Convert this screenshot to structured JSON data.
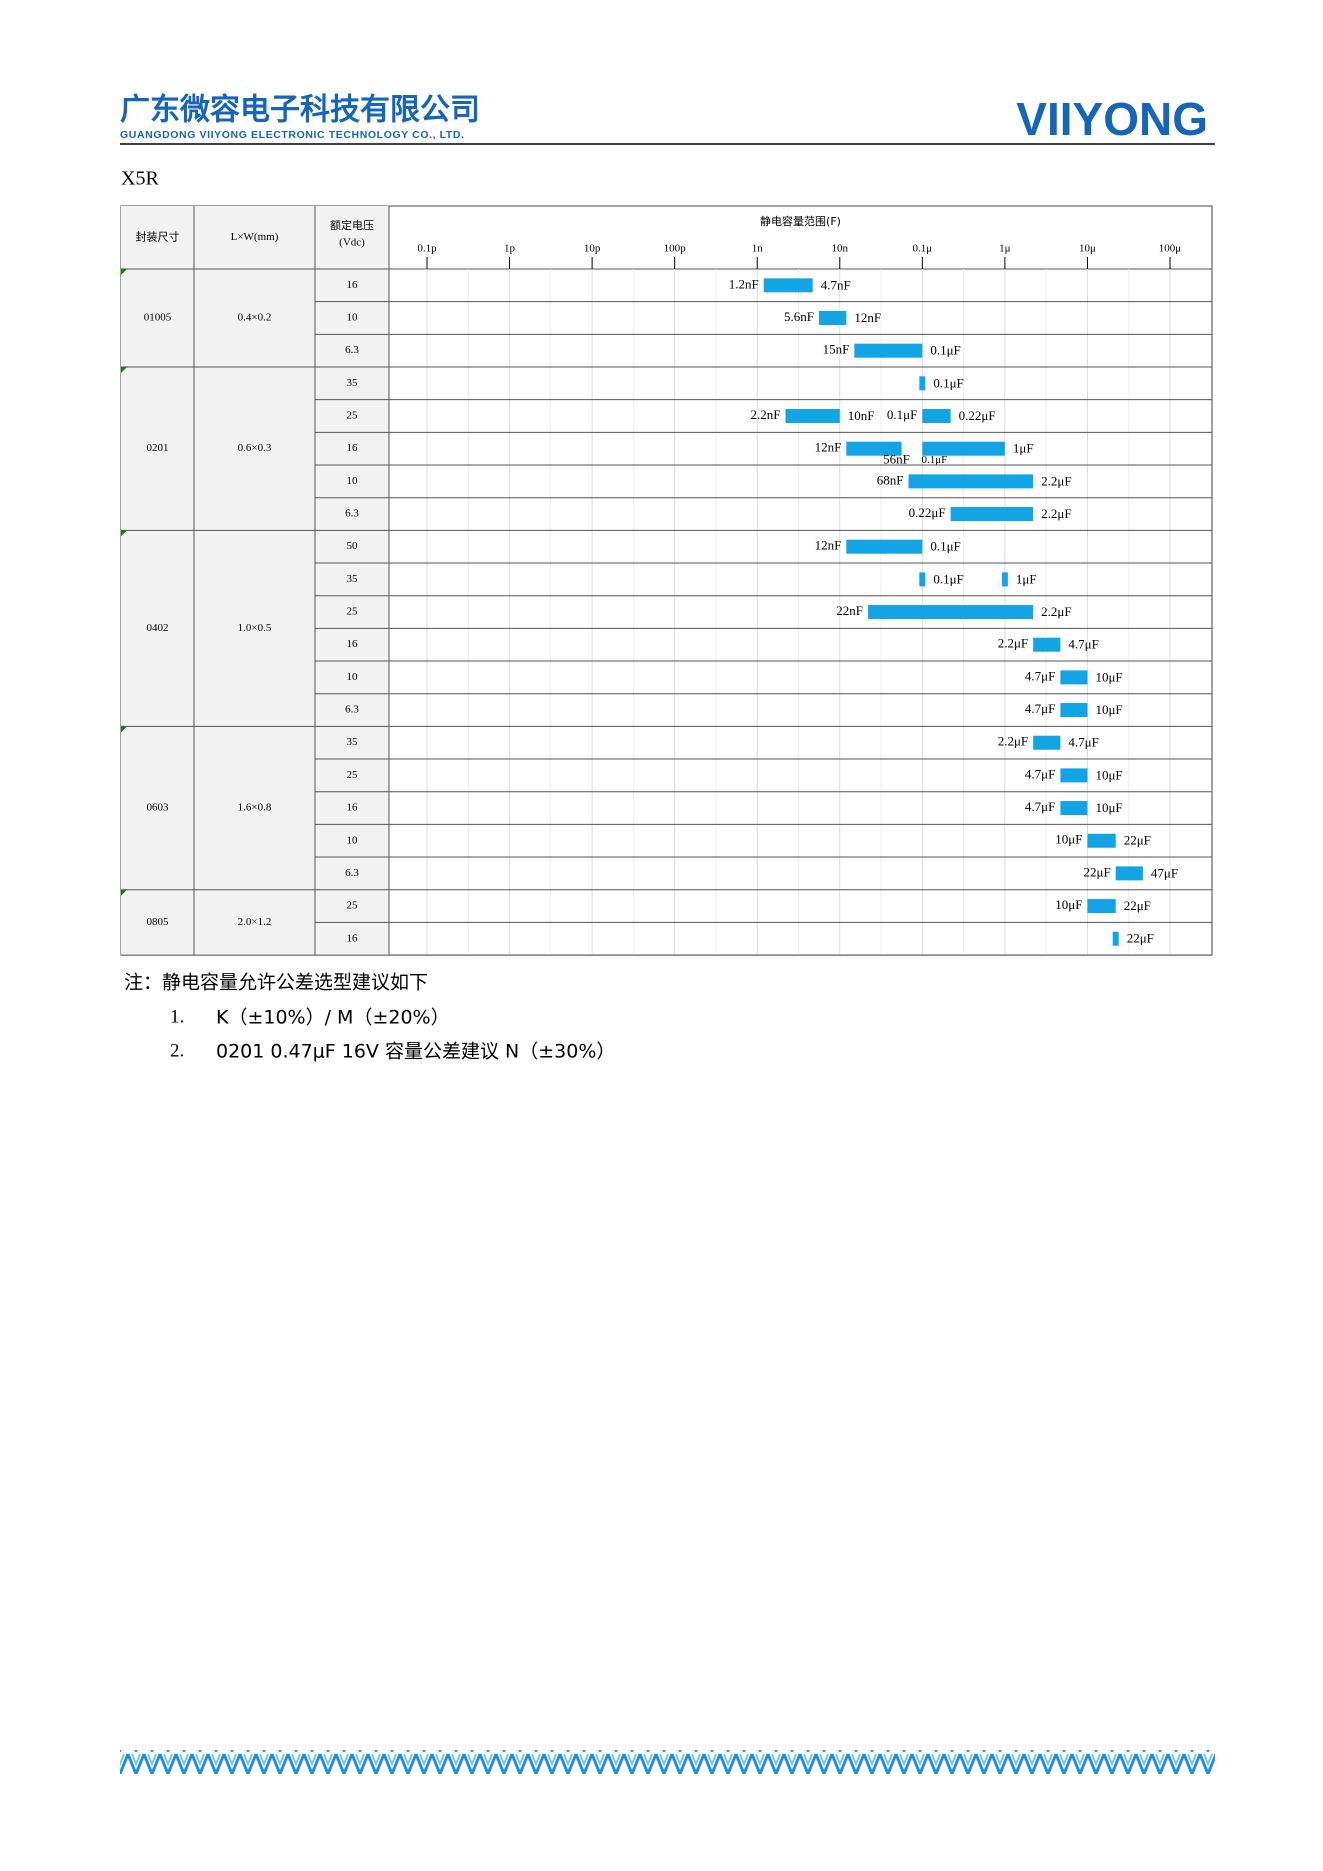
{
  "header": {
    "company_cn": "广东微容电子科技有限公司",
    "company_en": "GUANGDONG VIIYONG ELECTRONIC TECHNOLOGY CO., LTD.",
    "logo": "VIIYONG"
  },
  "section_title": "X5R",
  "table": {
    "col_size": "封装尺寸",
    "col_dims": "L×W(mm)",
    "col_voltage": [
      "额定电压",
      "(Vdc)"
    ],
    "col_range": "静电容量范围(F)",
    "ticks": [
      {
        "value": 1e-13,
        "label": "0.1p"
      },
      {
        "value": 1e-12,
        "label": "1p"
      },
      {
        "value": 1e-11,
        "label": "10p"
      },
      {
        "value": 1e-10,
        "label": "100p"
      },
      {
        "value": 1e-09,
        "label": "1n"
      },
      {
        "value": 1e-08,
        "label": "10n"
      },
      {
        "value": 1e-07,
        "label": "0.1μ"
      },
      {
        "value": 1e-06,
        "label": "1μ"
      },
      {
        "value": 1e-05,
        "label": "10μ"
      },
      {
        "value": 0.0001,
        "label": "100μ"
      }
    ],
    "log_scale": true,
    "bar_color": "#12a4e4",
    "groups": [
      {
        "size": "01005",
        "dims": "0.4×0.2",
        "rows": [
          {
            "voltage": "16",
            "ranges": [
              {
                "min": 1.2e-09,
                "max": 4.7e-09,
                "min_label": "1.2nF",
                "max_label": "4.7nF"
              }
            ]
          },
          {
            "voltage": "10",
            "ranges": [
              {
                "min": 5.6e-09,
                "max": 1.2e-08,
                "min_label": "5.6nF",
                "max_label": "12nF"
              }
            ]
          },
          {
            "voltage": "6.3",
            "ranges": [
              {
                "min": 1.5e-08,
                "max": 1e-07,
                "min_label": "15nF",
                "max_label": "0.1μF"
              }
            ]
          }
        ]
      },
      {
        "size": "0201",
        "dims": "0.6×0.3",
        "rows": [
          {
            "voltage": "35",
            "ranges": [
              {
                "min": 1e-07,
                "max": 1e-07,
                "max_label": "0.1μF"
              }
            ]
          },
          {
            "voltage": "25",
            "ranges": [
              {
                "min": 2.2e-09,
                "max": 1e-08,
                "min_label": "2.2nF",
                "max_label": "10nF"
              },
              {
                "min": 1e-07,
                "max": 2.2e-07,
                "min_label": "0.1μF",
                "max_label": "0.22μF"
              }
            ]
          },
          {
            "voltage": "16",
            "ranges": [
              {
                "min": 1.2e-08,
                "max": 5.6e-08,
                "min_label": "12nF",
                "max_label": "56nF"
              },
              {
                "min": 1e-07,
                "max": 1e-06,
                "min_label": "0.1μF",
                "max_label": "1μF"
              }
            ]
          },
          {
            "voltage": "10",
            "ranges": [
              {
                "min": 6.8e-08,
                "max": 2.2e-06,
                "min_label": "68nF",
                "max_label": "2.2μF"
              }
            ]
          },
          {
            "voltage": "6.3",
            "ranges": [
              {
                "min": 2.2e-07,
                "max": 2.2e-06,
                "min_label": "0.22μF",
                "max_label": "2.2μF"
              }
            ]
          }
        ]
      },
      {
        "size": "0402",
        "dims": "1.0×0.5",
        "rows": [
          {
            "voltage": "50",
            "ranges": [
              {
                "min": 1.2e-08,
                "max": 1e-07,
                "min_label": "12nF",
                "max_label": "0.1μF"
              }
            ]
          },
          {
            "voltage": "35",
            "ranges": [
              {
                "min": 1e-07,
                "max": 1e-07,
                "max_label": "0.1μF"
              },
              {
                "min": 1e-06,
                "max": 1e-06,
                "max_label": "1μF"
              }
            ]
          },
          {
            "voltage": "25",
            "ranges": [
              {
                "min": 2.2e-08,
                "max": 2.2e-06,
                "min_label": "22nF",
                "max_label": "2.2μF"
              }
            ]
          },
          {
            "voltage": "16",
            "ranges": [
              {
                "min": 2.2e-06,
                "max": 4.7e-06,
                "min_label": "2.2μF",
                "max_label": "4.7μF"
              }
            ]
          },
          {
            "voltage": "10",
            "ranges": [
              {
                "min": 4.7e-06,
                "max": 1e-05,
                "min_label": "4.7μF",
                "max_label": "10μF"
              }
            ]
          },
          {
            "voltage": "6.3",
            "ranges": [
              {
                "min": 4.7e-06,
                "max": 1e-05,
                "min_label": "4.7μF",
                "max_label": "10μF"
              }
            ]
          }
        ]
      },
      {
        "size": "0603",
        "dims": "1.6×0.8",
        "rows": [
          {
            "voltage": "35",
            "ranges": [
              {
                "min": 2.2e-06,
                "max": 4.7e-06,
                "min_label": "2.2μF",
                "max_label": "4.7μF"
              }
            ]
          },
          {
            "voltage": "25",
            "ranges": [
              {
                "min": 4.7e-06,
                "max": 1e-05,
                "min_label": "4.7μF",
                "max_label": "10μF"
              }
            ]
          },
          {
            "voltage": "16",
            "ranges": [
              {
                "min": 4.7e-06,
                "max": 1e-05,
                "min_label": "4.7μF",
                "max_label": "10μF"
              }
            ]
          },
          {
            "voltage": "10",
            "ranges": [
              {
                "min": 1e-05,
                "max": 2.2e-05,
                "min_label": "10μF",
                "max_label": "22μF"
              }
            ]
          },
          {
            "voltage": "6.3",
            "ranges": [
              {
                "min": 2.2e-05,
                "max": 4.7e-05,
                "min_label": "22μF",
                "max_label": "47μF"
              }
            ]
          }
        ]
      },
      {
        "size": "0805",
        "dims": "2.0×1.2",
        "rows": [
          {
            "voltage": "25",
            "ranges": [
              {
                "min": 1e-05,
                "max": 2.2e-05,
                "min_label": "10μF",
                "max_label": "22μF"
              }
            ]
          },
          {
            "voltage": "16",
            "ranges": [
              {
                "min": 2.2e-05,
                "max": 2.2e-05,
                "max_label": "22μF"
              }
            ]
          }
        ]
      }
    ]
  },
  "notes": {
    "title": "注：静电容量允许公差选型建议如下",
    "items": [
      {
        "num": "1.",
        "text": "K（±10%）/ M（±20%）"
      },
      {
        "num": "2.",
        "text": "0201 0.47μF 16V 容量公差建议 N（±30%）"
      }
    ]
  }
}
